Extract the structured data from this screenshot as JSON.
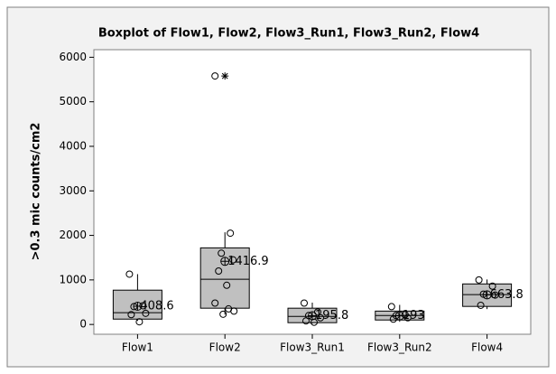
{
  "chart_data": {
    "type": "box",
    "title": "Boxplot of Flow1, Flow2, Flow3_Run1, Flow3_Run2, Flow4",
    "y_label": ">0.3 mic counts/cm2",
    "categories": [
      "Flow1",
      "Flow2",
      "Flow3_Run1",
      "Flow3_Run2",
      "Flow4"
    ],
    "boxes": [
      {
        "min": 80,
        "q1": 120,
        "median": 264,
        "q3": 770,
        "max": 1130,
        "mean": 408.6,
        "points": [
          1130,
          420,
          400,
          250,
          220,
          60
        ],
        "outliers": []
      },
      {
        "min": 220,
        "q1": 365,
        "median": 1015,
        "q3": 1720,
        "max": 2070,
        "mean": 1416.9,
        "points": [
          5580,
          2050,
          1600,
          1450,
          1200,
          880,
          480,
          350,
          300,
          230
        ],
        "outliers": [
          5580
        ]
      },
      {
        "min": 20,
        "q1": 40,
        "median": 180,
        "q3": 365,
        "max": 490,
        "mean": 195.8,
        "points": [
          480,
          280,
          200,
          150,
          80,
          50
        ],
        "outliers": []
      },
      {
        "min": 60,
        "q1": 100,
        "median": 200,
        "q3": 300,
        "max": 440,
        "mean": 193,
        "points": [
          400,
          220,
          200,
          150,
          120
        ],
        "outliers": []
      },
      {
        "min": 345,
        "q1": 405,
        "median": 670,
        "q3": 910,
        "max": 1010,
        "mean": 663.8,
        "points": [
          1000,
          860,
          680,
          660,
          430
        ],
        "outliers": []
      }
    ],
    "box_color": "#c0c0c0",
    "ylim": [
      -220,
      6170
    ],
    "yticks": [
      0,
      1000,
      2000,
      3000,
      4000,
      5000,
      6000
    ]
  }
}
